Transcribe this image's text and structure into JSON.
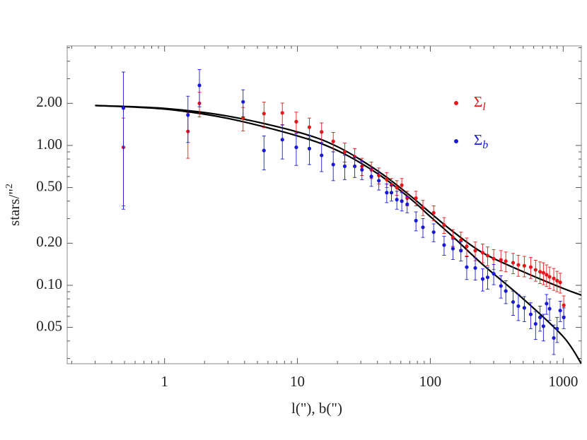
{
  "chart_data": {
    "type": "scatter",
    "xlabel": "l(\"), b(\")",
    "ylabel": "stars/\"2",
    "xscale": "log",
    "yscale": "log",
    "xlim": [
      0.185,
      1370
    ],
    "ylim": [
      0.0275,
      5.15
    ],
    "xticks": [
      1,
      10,
      100,
      1000
    ],
    "yticks": [
      {
        "value": 0.05,
        "label": "0.05"
      },
      {
        "value": 0.1,
        "label": "0.10"
      },
      {
        "value": 0.2,
        "label": "0.20"
      },
      {
        "value": 0.5,
        "label": "0.50"
      },
      {
        "value": 1,
        "label": "1.00"
      },
      {
        "value": 2,
        "label": "2.00"
      }
    ],
    "xminorticks": [
      0.2,
      0.3,
      0.4,
      0.5,
      0.6,
      0.7,
      0.8,
      0.9,
      2,
      3,
      4,
      5,
      6,
      7,
      8,
      9,
      20,
      30,
      40,
      50,
      60,
      70,
      80,
      90,
      200,
      300,
      400,
      500,
      600,
      700,
      800,
      900
    ],
    "yminorticks": [
      0.03,
      0.04,
      0.06,
      0.07,
      0.08,
      0.09,
      0.3,
      0.4,
      0.6,
      0.7,
      0.8,
      0.9,
      3,
      4,
      5
    ],
    "legend": "top right",
    "series": [
      {
        "name": "Σl",
        "color": "#e8161b",
        "x": [
          0.49,
          1.5,
          1.83,
          3.9,
          5.6,
          7.7,
          9.8,
          12.3,
          15.2,
          18.6,
          22.7,
          27,
          30.6,
          36,
          41,
          47,
          51,
          56,
          61,
          67,
          78,
          88,
          106,
          127,
          148,
          170,
          188,
          218,
          248,
          270,
          300,
          340,
          370,
          420,
          460,
          510,
          570,
          620,
          670,
          710,
          750,
          790,
          850,
          900,
          950,
          1010
        ],
        "values": [
          0.97,
          1.26,
          2.0,
          1.57,
          1.69,
          1.71,
          1.48,
          1.35,
          1.25,
          1.07,
          0.9,
          0.83,
          0.71,
          0.67,
          0.61,
          0.57,
          0.52,
          0.5,
          0.52,
          0.42,
          0.42,
          0.36,
          0.33,
          0.27,
          0.22,
          0.21,
          0.19,
          0.177,
          0.171,
          0.163,
          0.155,
          0.152,
          0.149,
          0.145,
          0.14,
          0.138,
          0.135,
          0.129,
          0.125,
          0.123,
          0.119,
          0.115,
          0.112,
          0.108,
          0.105,
          0.072
        ],
        "errors": [
          0.6,
          0.45,
          0.4,
          0.3,
          0.35,
          0.3,
          0.25,
          0.22,
          0.2,
          0.17,
          0.14,
          0.12,
          0.1,
          0.09,
          0.08,
          0.07,
          0.06,
          0.06,
          0.06,
          0.05,
          0.05,
          0.045,
          0.04,
          0.035,
          0.03,
          0.03,
          0.028,
          0.027,
          0.026,
          0.025,
          0.025,
          0.025,
          0.024,
          0.024,
          0.024,
          0.023,
          0.023,
          0.022,
          0.022,
          0.022,
          0.021,
          0.02,
          0.02,
          0.018,
          0.017,
          0.012
        ]
      },
      {
        "name": "Σb",
        "color": "#1a1ad6",
        "x": [
          0.49,
          1.5,
          1.83,
          3.9,
          5.6,
          7.7,
          9.8,
          12.3,
          15.2,
          18.6,
          22.7,
          27,
          30.6,
          36,
          41,
          47,
          51,
          56,
          61,
          67,
          78,
          88,
          106,
          127,
          148,
          170,
          188,
          218,
          248,
          270,
          300,
          340,
          370,
          420,
          460,
          510,
          570,
          620,
          670,
          710,
          750,
          790,
          850,
          900,
          950,
          1010
        ],
        "values": [
          1.85,
          1.65,
          2.69,
          2.05,
          0.92,
          1.1,
          0.97,
          0.95,
          0.85,
          0.73,
          0.71,
          0.71,
          0.67,
          0.6,
          0.56,
          0.46,
          0.46,
          0.41,
          0.4,
          0.38,
          0.29,
          0.26,
          0.24,
          0.194,
          0.183,
          0.177,
          0.135,
          0.133,
          0.111,
          0.114,
          0.121,
          0.099,
          0.091,
          0.076,
          0.071,
          0.069,
          0.062,
          0.053,
          0.059,
          0.051,
          0.074,
          0.068,
          0.042,
          0.049,
          0.066,
          0.059
        ],
        "errors": [
          1.5,
          0.6,
          0.8,
          0.45,
          0.25,
          0.3,
          0.25,
          0.22,
          0.2,
          0.17,
          0.14,
          0.12,
          0.1,
          0.09,
          0.08,
          0.07,
          0.06,
          0.06,
          0.06,
          0.05,
          0.045,
          0.04,
          0.035,
          0.03,
          0.03,
          0.028,
          0.025,
          0.024,
          0.02,
          0.02,
          0.02,
          0.018,
          0.017,
          0.015,
          0.015,
          0.014,
          0.013,
          0.012,
          0.012,
          0.011,
          0.012,
          0.012,
          0.01,
          0.01,
          0.011,
          0.01
        ]
      }
    ],
    "fits": [
      {
        "color": "#000000",
        "x": [
          0.3,
          1,
          3,
          10,
          20,
          40,
          70,
          100,
          150,
          250,
          500,
          1000,
          1370
        ],
        "values": [
          1.93,
          1.84,
          1.62,
          1.25,
          0.98,
          0.66,
          0.44,
          0.33,
          0.24,
          0.17,
          0.125,
          0.095,
          0.085
        ]
      },
      {
        "color": "#000000",
        "x": [
          0.3,
          1,
          3,
          10,
          20,
          40,
          70,
          100,
          150,
          250,
          500,
          1000,
          1370
        ],
        "values": [
          1.93,
          1.82,
          1.56,
          1.17,
          0.92,
          0.63,
          0.42,
          0.31,
          0.22,
          0.14,
          0.08,
          0.043,
          0.0275
        ]
      }
    ]
  }
}
